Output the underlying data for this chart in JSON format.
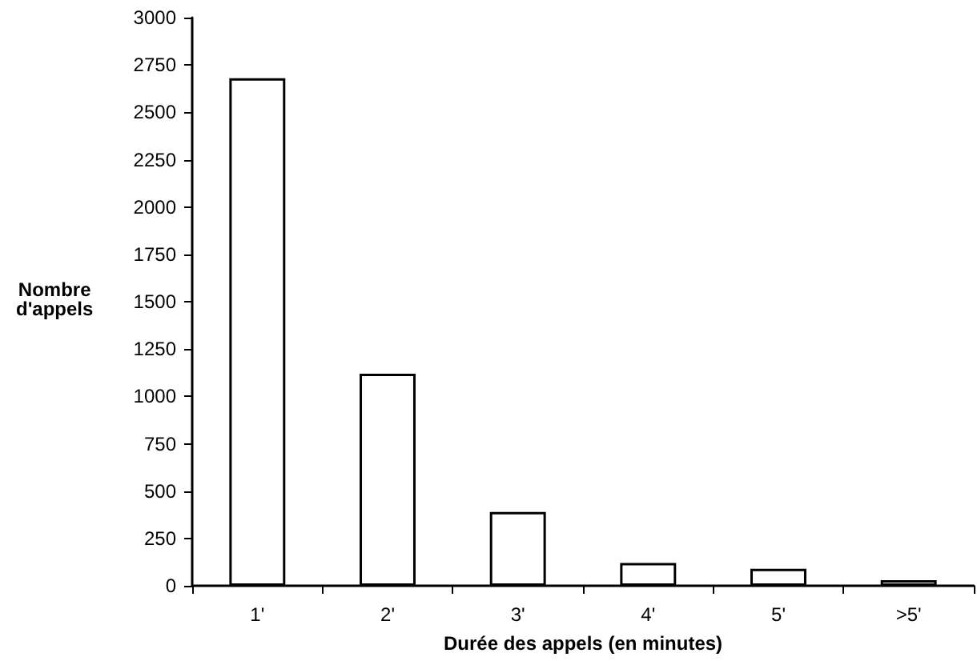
{
  "chart_data": {
    "type": "bar",
    "xlabel": "Durée des appels (en minutes)",
    "ylabel": "Nombre d'appels",
    "categories": [
      "1'",
      "2'",
      "3'",
      "4'",
      "5'",
      ">5'"
    ],
    "values": [
      2680,
      1120,
      390,
      120,
      90,
      30
    ],
    "color": "#ffffff",
    "ylim": [
      0,
      3000
    ],
    "yticks": [
      0,
      250,
      500,
      750,
      1000,
      1250,
      1500,
      1750,
      2000,
      2250,
      2500,
      2750,
      3000
    ],
    "grid": false
  }
}
